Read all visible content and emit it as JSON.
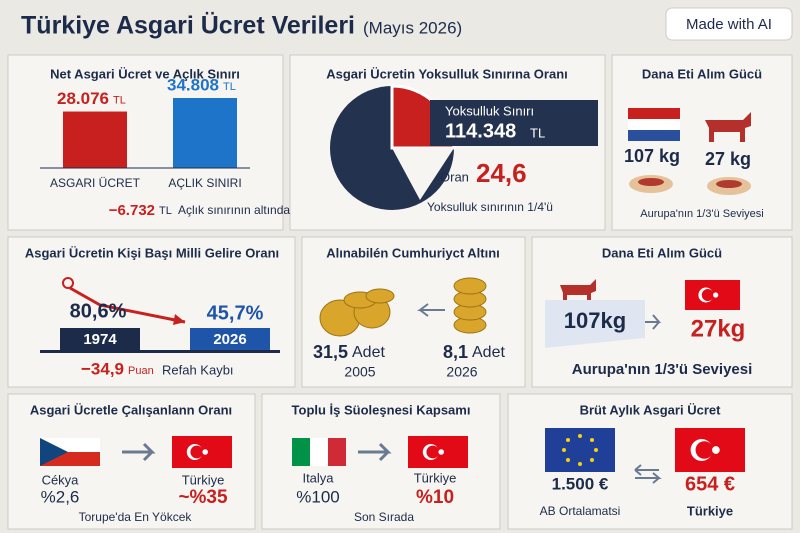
{
  "header": {
    "title": "Türkiye Asgari Ücret Verileri",
    "date": "(Mayıs 2026)",
    "badge": "Made with AI"
  },
  "panels": [
    {
      "title": "Net Asgari Ücret ve Açlık Sınırı",
      "unit": "TL",
      "bars": [
        {
          "label": "ASGARI ÜCRET",
          "value": 28076,
          "value_label": "28.076",
          "color": "#c8201e"
        },
        {
          "label": "AÇLIK SINIRI",
          "value": 34808,
          "value_label": "34.808",
          "color": "#1e74c8"
        }
      ],
      "diff": "−6.732",
      "diff_unit": "TL",
      "note": "Açlık sınırının altında"
    },
    {
      "title": "Asgari Ücretin Yoksulluk Sınırına Oranı",
      "label": "Yoksulluk Sınırı",
      "value": "114.348",
      "unit": "TL",
      "ratio_label": "Oran",
      "ratio": "24,6",
      "footnote": "Yoksulluk sınırının 1/4'ü"
    },
    {
      "title": "Dana Eti Alım Gücü",
      "left": "107 kg",
      "right": "27 kg",
      "footnote": "Aurupa'nın 1/3'ü Seviyesi"
    },
    {
      "title": "Asgari Ücretin Kişi Başı Milli Gelire Oranı",
      "left": {
        "pct": "80,6%",
        "year": "1974"
      },
      "right": {
        "pct": "45,7%",
        "year": "2026"
      },
      "loss": "−34,9",
      "loss_unit": "Puan",
      "loss_note": "Refah Kaybı"
    },
    {
      "title": "Alınabilén Cumhuriyct Altını",
      "left": {
        "count": "31,5",
        "unit": "Adet",
        "year": "2005"
      },
      "right": {
        "count": "8,1",
        "unit": "Adet",
        "year": "2026"
      }
    },
    {
      "title": "Dana Eti Alım Gücü",
      "left": "107kg",
      "right": "27kg",
      "footnote": "Aurupa'nın 1/3'ü Seviyesi"
    },
    {
      "title": "Asgari Ücretle Çalışanlann Oranı",
      "left": {
        "country": "Cékya",
        "value": "%2,6"
      },
      "right": {
        "country": "Türkiye",
        "value": "~%35"
      },
      "footnote": "Torupe'da En Yökcek"
    },
    {
      "title": "Toplu İş Süoleşnesi Kapsamı",
      "left": {
        "country": "Italya",
        "value": "%100"
      },
      "right": {
        "country": "Türkiye",
        "value": "%10"
      },
      "footnote": "Son Sırada"
    },
    {
      "title": "Brüt Aylık Asgari Ücret",
      "left": {
        "value": "1.500 €",
        "label": "AB Ortalamatsi"
      },
      "right": {
        "value": "654 €",
        "label": "Türkiye"
      }
    }
  ]
}
